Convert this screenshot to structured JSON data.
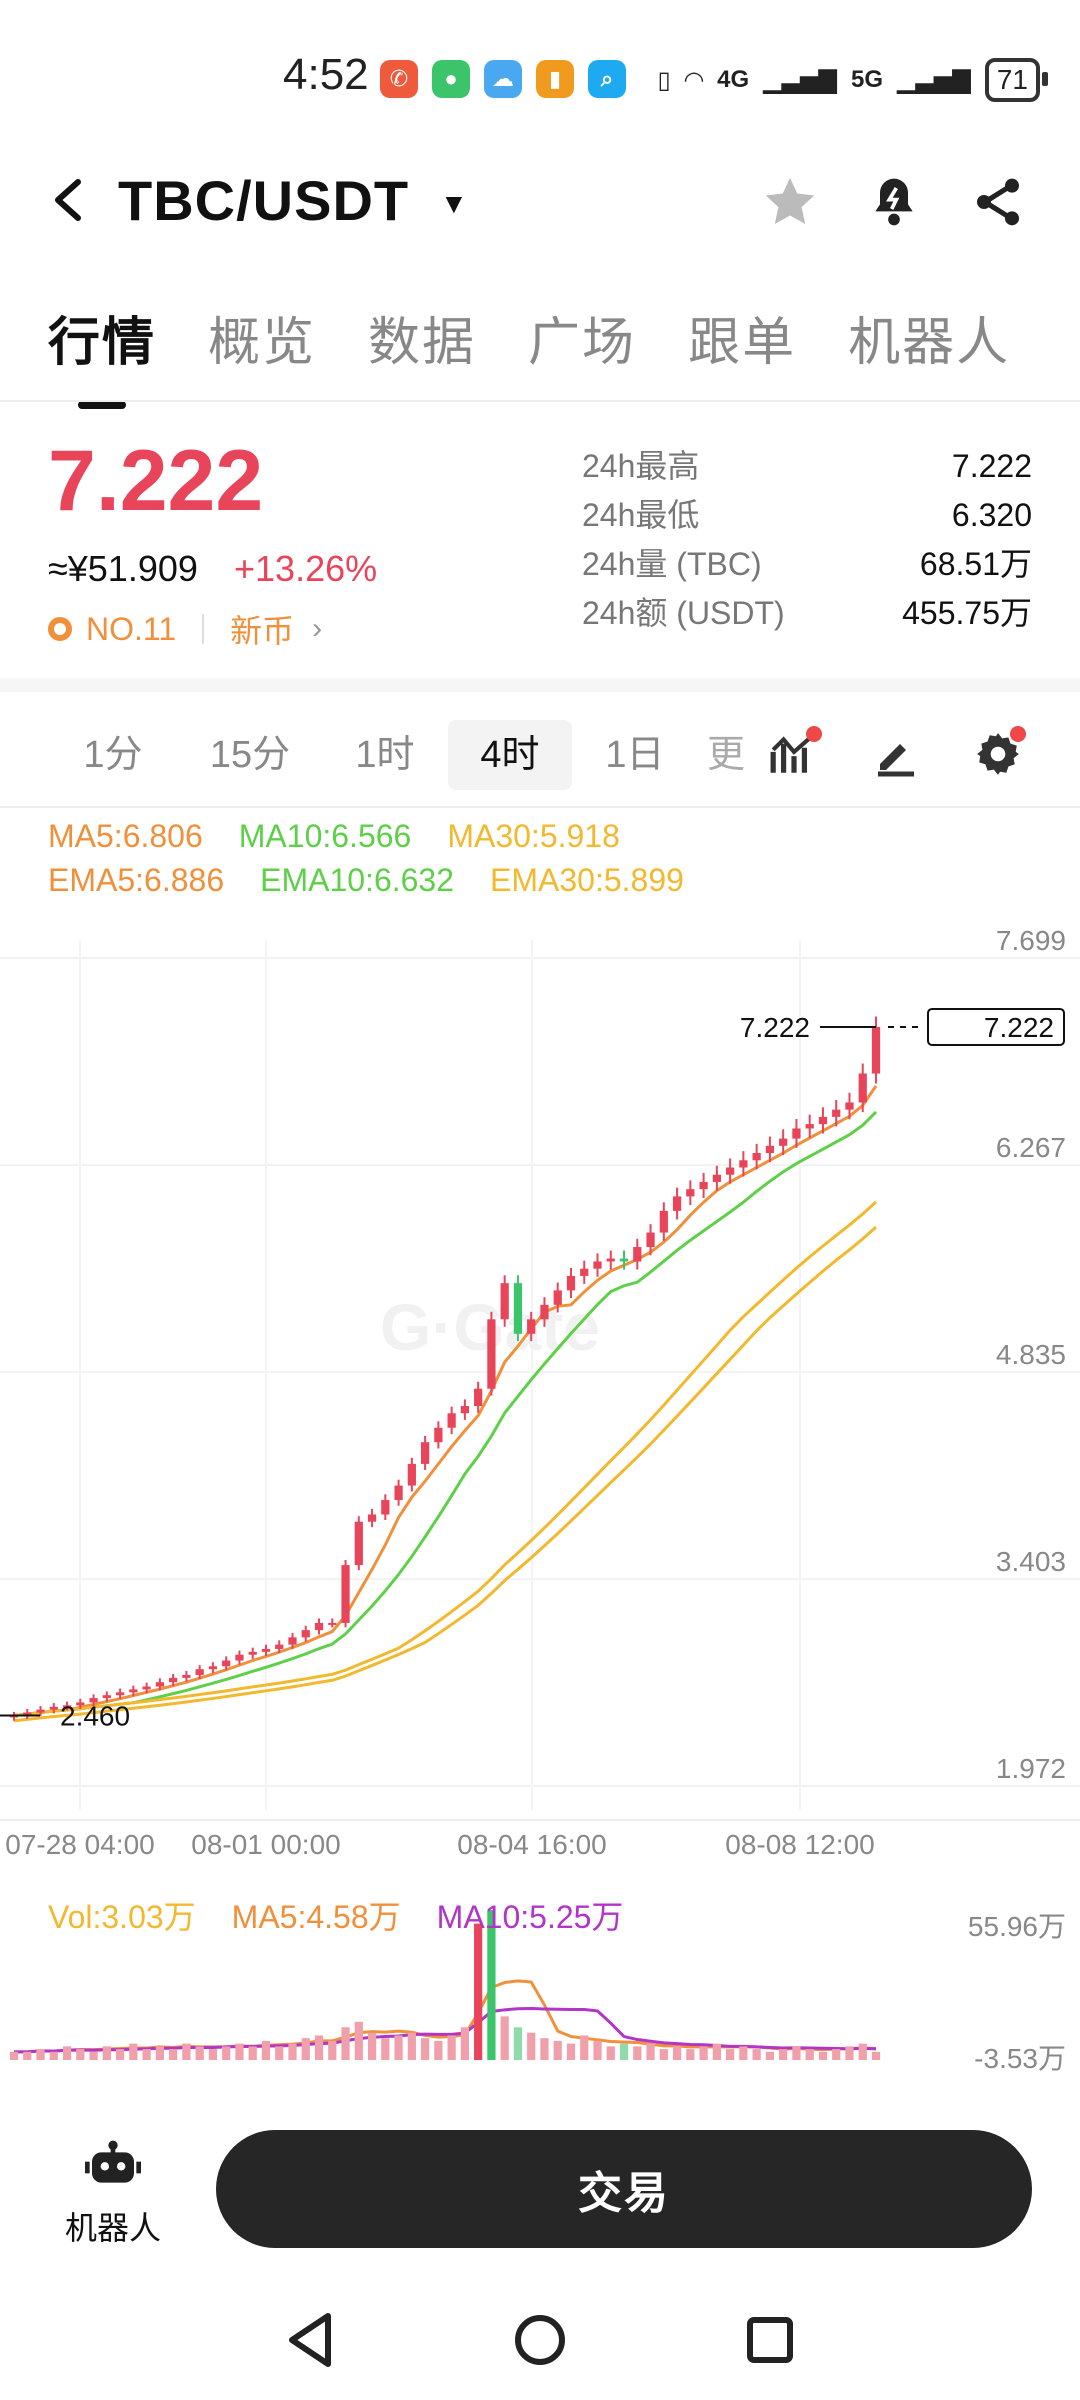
{
  "status_bar": {
    "time": "4:52",
    "network1": "4G",
    "network2": "5G",
    "battery": "71"
  },
  "header": {
    "pair": "TBC/USDT"
  },
  "tabs": [
    {
      "label": "行情",
      "active": true
    },
    {
      "label": "概览",
      "active": false
    },
    {
      "label": "数据",
      "active": false
    },
    {
      "label": "广场",
      "active": false
    },
    {
      "label": "跟单",
      "active": false
    },
    {
      "label": "机器人",
      "active": false
    }
  ],
  "ticker": {
    "price": "7.222",
    "price_cny": "≈¥51.909",
    "change": "+13.26%",
    "rank": "NO.11",
    "tag": "新币",
    "stats": [
      {
        "label": "24h最高",
        "value": "7.222"
      },
      {
        "label": "24h最低",
        "value": "6.320"
      },
      {
        "label": "24h量 (TBC)",
        "value": "68.51万"
      },
      {
        "label": "24h额 (USDT)",
        "value": "455.75万"
      }
    ]
  },
  "timeframes": [
    {
      "label": "1分",
      "active": false
    },
    {
      "label": "15分",
      "active": false
    },
    {
      "label": "1时",
      "active": false
    },
    {
      "label": "4时",
      "active": true
    },
    {
      "label": "1日",
      "active": false
    },
    {
      "label": "更",
      "active": false
    }
  ],
  "ma_legend": {
    "ma5": "MA5:6.806",
    "ma10": "MA10:6.566",
    "ma30": "MA30:5.918",
    "ema5": "EMA5:6.886",
    "ema10": "EMA10:6.632",
    "ema30": "EMA30:5.899"
  },
  "vol_legend": {
    "vol": "Vol:3.03万",
    "ma5": "MA5:4.58万",
    "ma10": "MA10:5.25万"
  },
  "colors": {
    "up": "#e8445a",
    "down": "#3cc46a",
    "ma5": "#f0903a",
    "ma10": "#5ed048",
    "ma30": "#f2b82e",
    "vol_ma10": "#b234c8"
  },
  "chart_data": {
    "type": "candlestick",
    "interval": "4时",
    "y_ticks": [
      "7.699",
      "6.267",
      "4.835",
      "3.403",
      "1.972"
    ],
    "ylim": [
      1.972,
      7.699
    ],
    "x_ticks": [
      "07-28 04:00",
      "08-01 00:00",
      "08-04 16:00",
      "08-08 12:00"
    ],
    "last_price": "7.222",
    "last_price_tag": "7.222",
    "min_marker": "2.460",
    "candles": [
      2.46,
      2.48,
      2.5,
      2.52,
      2.53,
      2.55,
      2.58,
      2.6,
      2.62,
      2.64,
      2.66,
      2.69,
      2.72,
      2.74,
      2.78,
      2.8,
      2.84,
      2.88,
      2.9,
      2.92,
      2.95,
      3.0,
      3.05,
      3.1,
      3.1,
      3.5,
      3.8,
      3.85,
      3.95,
      4.05,
      4.2,
      4.35,
      4.45,
      4.55,
      4.6,
      4.72,
      5.2,
      5.45,
      5.1,
      5.2,
      5.3,
      5.4,
      5.5,
      5.55,
      5.6,
      5.62,
      5.6,
      5.7,
      5.8,
      5.95,
      6.05,
      6.1,
      6.15,
      6.2,
      6.25,
      6.3,
      6.35,
      6.4,
      6.45,
      6.52,
      6.55,
      6.6,
      6.65,
      6.7,
      6.9,
      7.222
    ],
    "volume_ticks": [
      "55.96万",
      "-3.53万"
    ],
    "volume": [
      3,
      3,
      4,
      3,
      5,
      4,
      3,
      5,
      4,
      6,
      4,
      5,
      4,
      6,
      5,
      4,
      5,
      6,
      5,
      7,
      5,
      6,
      8,
      9,
      7,
      12,
      14,
      10,
      8,
      9,
      10,
      8,
      7,
      9,
      12,
      50,
      55,
      16,
      12,
      10,
      8,
      7,
      6,
      9,
      7,
      5,
      6,
      5,
      6,
      4,
      5,
      4,
      5,
      6,
      4,
      5,
      4,
      3,
      4,
      5,
      4,
      3,
      4,
      5,
      6,
      3
    ]
  },
  "bottom": {
    "robot_label": "机器人",
    "trade_label": "交易"
  }
}
